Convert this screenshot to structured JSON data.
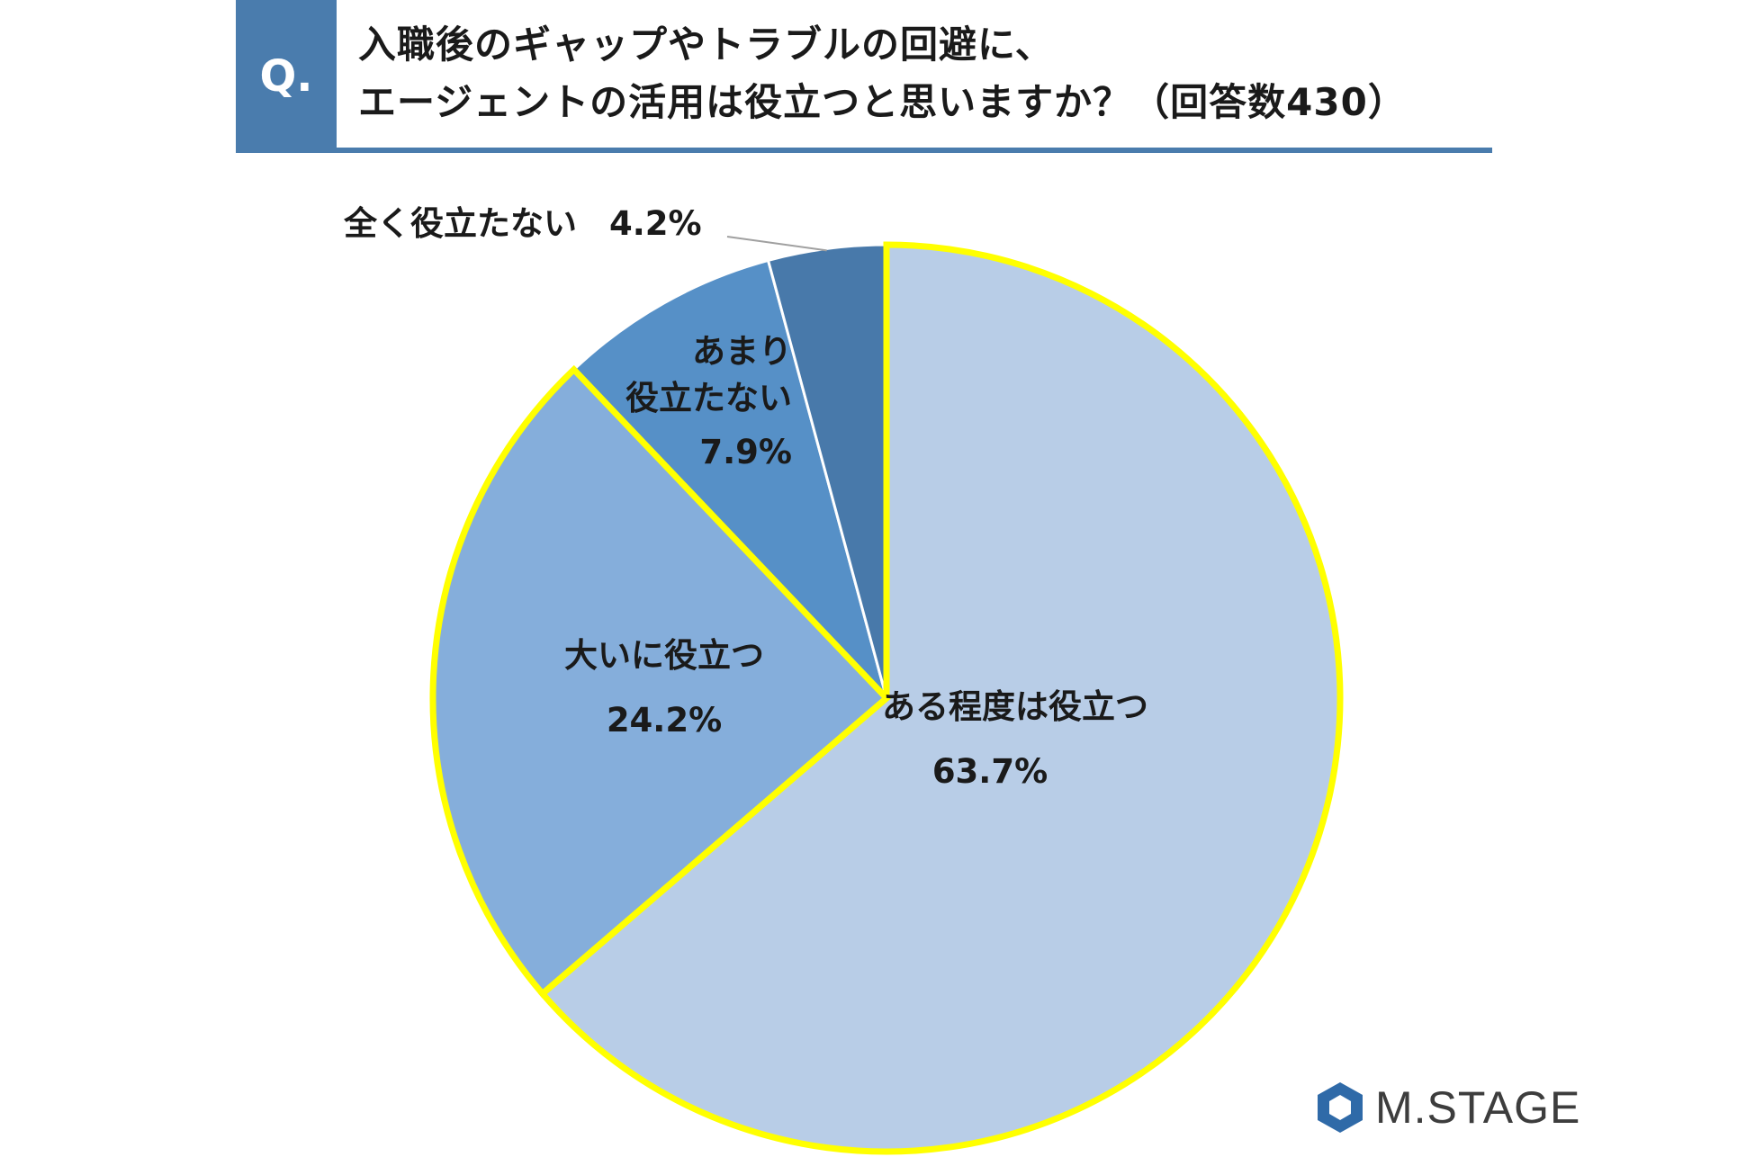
{
  "header": {
    "badge": "Q.",
    "question_line1": "入職後のギャップやトラブルの回避に、",
    "question_line2": "エージェントの活用は役立つと思いますか？（回答数430）"
  },
  "chart_data": {
    "type": "pie",
    "slices": [
      {
        "label": "ある程度は役立つ",
        "value": 63.7,
        "value_label": "63.7%",
        "color": "#b8cde7",
        "highlighted": true
      },
      {
        "label": "大いに役立つ",
        "value": 24.2,
        "value_label": "24.2%",
        "color": "#85aedb",
        "highlighted": true
      },
      {
        "label_lines": [
          "あまり",
          "役立たない"
        ],
        "value": 7.9,
        "value_label": "7.9%",
        "color": "#5690c7",
        "highlighted": false
      },
      {
        "label": "全く役立たない",
        "value": 4.2,
        "value_label": "4.2%",
        "color": "#4879aa",
        "highlighted": false
      }
    ],
    "start_direction": "12 o'clock",
    "order": "clockwise",
    "highlight_color": "#ffff00",
    "legend": "none"
  },
  "logo": {
    "text": "M.STAGE",
    "icon": "hexagon-logo-icon",
    "color": "#2f6aa8"
  }
}
